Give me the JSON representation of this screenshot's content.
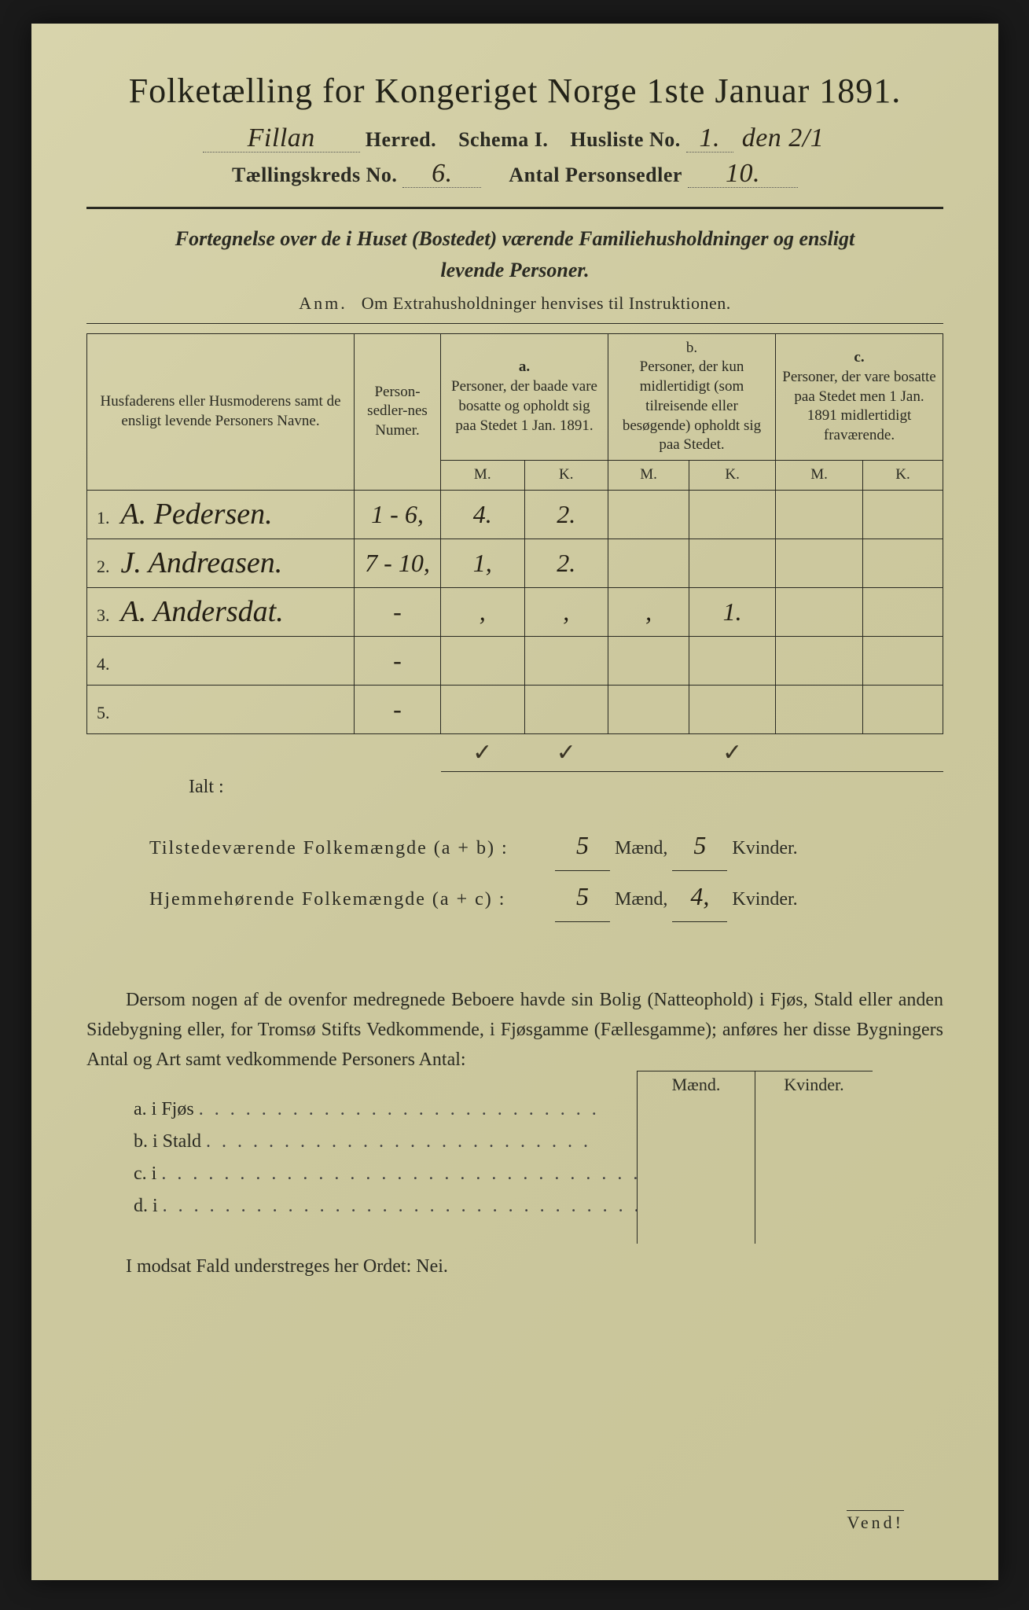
{
  "title": "Folketælling for Kongeriget Norge 1ste Januar 1891.",
  "header": {
    "herred_value": "Fillan",
    "herred_label": "Herred.",
    "schema_label": "Schema I.",
    "husliste_label": "Husliste No.",
    "husliste_value": "1.",
    "den_value": "den 2/1",
    "kreds_label": "Tællingskreds No.",
    "kreds_value": "6.",
    "antal_label": "Antal Personsedler",
    "antal_value": "10."
  },
  "subtitle_line1": "Fortegnelse over de i Huset (Bostedet) værende Familiehusholdninger og ensligt",
  "subtitle_line2": "levende Personer.",
  "anm_prefix": "Anm.",
  "anm_text": "Om Extrahusholdninger henvises til Instruktionen.",
  "table": {
    "col_name": "Husfaderens eller Husmoderens samt de ensligt levende Personers Navne.",
    "col_num": "Person-sedler-nes Numer.",
    "col_a_top": "a.",
    "col_a": "Personer, der baade vare bosatte og opholdt sig paa Stedet 1 Jan. 1891.",
    "col_b_top": "b.",
    "col_b": "Personer, der kun midlertidigt (som tilreisende eller besøgende) opholdt sig paa Stedet.",
    "col_c_top": "c.",
    "col_c": "Personer, der vare bosatte paa Stedet men 1 Jan. 1891 midlertidigt fraværende.",
    "m": "M.",
    "k": "K.",
    "rows": [
      {
        "n": "1.",
        "name": "A. Pedersen.",
        "num": "1 - 6,",
        "am": "4.",
        "ak": "2.",
        "bm": "",
        "bk": "",
        "cm": "",
        "ck": ""
      },
      {
        "n": "2.",
        "name": "J. Andreasen.",
        "num": "7 - 10,",
        "am": "1,",
        "ak": "2.",
        "bm": "",
        "bk": "",
        "cm": "",
        "ck": ""
      },
      {
        "n": "3.",
        "name": "A. Andersdat.",
        "num": "-",
        "am": ",",
        "ak": ",",
        "bm": ",",
        "bk": "1.",
        "cm": "",
        "ck": ""
      },
      {
        "n": "4.",
        "name": "",
        "num": "-",
        "am": "",
        "ak": "",
        "bm": "",
        "bk": "",
        "cm": "",
        "ck": ""
      },
      {
        "n": "5.",
        "name": "",
        "num": "-",
        "am": "",
        "ak": "",
        "bm": "",
        "bk": "",
        "cm": "",
        "ck": ""
      }
    ],
    "checks": {
      "am": "✓",
      "ak": "✓",
      "bm": "",
      "bk": "✓",
      "cm": "",
      "ck": ""
    }
  },
  "ialt": "Ialt :",
  "totals": {
    "line1_label": "Tilstedeværende Folkemængde (a + b) :",
    "line1_m": "5",
    "line1_k": "5",
    "line2_label": "Hjemmehørende Folkemængde (a + c) :",
    "line2_m": "5",
    "line2_k": "4,",
    "maend": "Mænd,",
    "kvinder": "Kvinder."
  },
  "note": "Dersom nogen af de ovenfor medregnede Beboere havde sin Bolig (Natteophold) i Fjøs, Stald eller anden Sidebygning eller, for Tromsø Stifts Vedkommende, i Fjøsgamme (Fællesgamme); anføres her disse Bygningers Antal og Art samt vedkommende Personers Antal:",
  "buildings": {
    "header_m": "Mænd.",
    "header_k": "Kvinder.",
    "a": "a.   i      Fjøs",
    "b": "b.   i      Stald",
    "c": "c.   i",
    "d": "d.   i"
  },
  "nei": "I modsat Fald understreges her Ordet: Nei.",
  "vend": "Vend!"
}
